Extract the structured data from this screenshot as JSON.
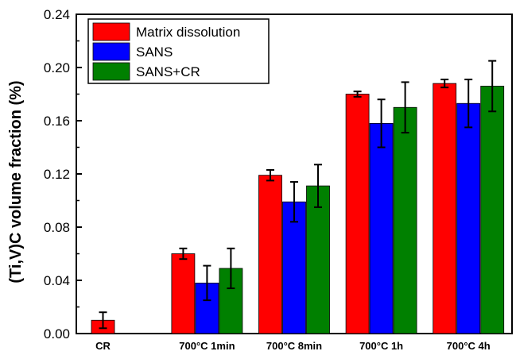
{
  "chart_data": {
    "type": "bar",
    "title": "",
    "xlabel": "",
    "ylabel": "(Ti,V)C volume fraction (%)",
    "ylim": [
      0,
      0.24
    ],
    "yticks": [
      "0.00",
      "0.04",
      "0.08",
      "0.12",
      "0.16",
      "0.20",
      "0.24"
    ],
    "grid": false,
    "legend_position": "top-left",
    "categories": [
      "CR",
      "700°C 1min",
      "700°C 8min",
      "700°C 1h",
      "700°C 4h"
    ],
    "series": [
      {
        "name": "Matrix dissolution",
        "color": "#ff0000",
        "values": [
          0.01,
          0.06,
          0.119,
          0.18,
          0.188
        ],
        "errors": [
          0.006,
          0.004,
          0.004,
          0.002,
          0.003
        ]
      },
      {
        "name": "SANS",
        "color": "#0000ff",
        "values": [
          null,
          0.038,
          0.099,
          0.158,
          0.173
        ],
        "errors": [
          null,
          0.013,
          0.015,
          0.018,
          0.018
        ]
      },
      {
        "name": "SANS+CR",
        "color": "#008000",
        "values": [
          null,
          0.049,
          0.111,
          0.17,
          0.186
        ],
        "errors": [
          null,
          0.015,
          0.016,
          0.019,
          0.019
        ]
      }
    ]
  }
}
